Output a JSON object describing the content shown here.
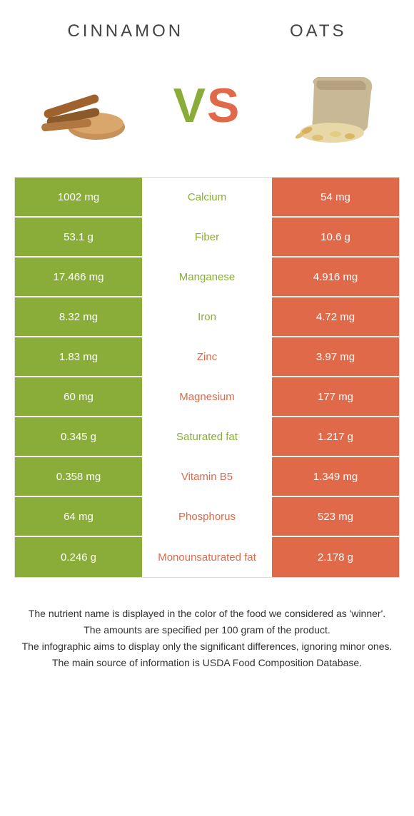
{
  "colors": {
    "cinnamon": "#8aad3a",
    "oats": "#e0694a",
    "mid_bg": "#ffffff",
    "border": "#dddddd"
  },
  "header": {
    "left_title": "CINNAMON",
    "right_title": "OATS"
  },
  "vs": {
    "v": "V",
    "s": "S"
  },
  "rows": [
    {
      "left": "1002 mg",
      "label": "Calcium",
      "right": "54 mg",
      "winner": "left"
    },
    {
      "left": "53.1 g",
      "label": "Fiber",
      "right": "10.6 g",
      "winner": "left"
    },
    {
      "left": "17.466 mg",
      "label": "Manganese",
      "right": "4.916 mg",
      "winner": "left"
    },
    {
      "left": "8.32 mg",
      "label": "Iron",
      "right": "4.72 mg",
      "winner": "left"
    },
    {
      "left": "1.83 mg",
      "label": "Zinc",
      "right": "3.97 mg",
      "winner": "right"
    },
    {
      "left": "60 mg",
      "label": "Magnesium",
      "right": "177 mg",
      "winner": "right"
    },
    {
      "left": "0.345 g",
      "label": "Saturated fat",
      "right": "1.217 g",
      "winner": "left"
    },
    {
      "left": "0.358 mg",
      "label": "Vitamin B5",
      "right": "1.349 mg",
      "winner": "right"
    },
    {
      "left": "64 mg",
      "label": "Phosphorus",
      "right": "523 mg",
      "winner": "right"
    },
    {
      "left": "0.246 g",
      "label": "Monounsaturated fat",
      "right": "2.178 g",
      "winner": "right"
    }
  ],
  "footer": {
    "line1": "The nutrient name is displayed in the color of the food we considered as 'winner'.",
    "line2": "The amounts are specified per 100 gram of the product.",
    "line3": "The infographic aims to display only the significant differences, ignoring minor ones.",
    "line4": "The main source of information is USDA Food Composition Database."
  }
}
